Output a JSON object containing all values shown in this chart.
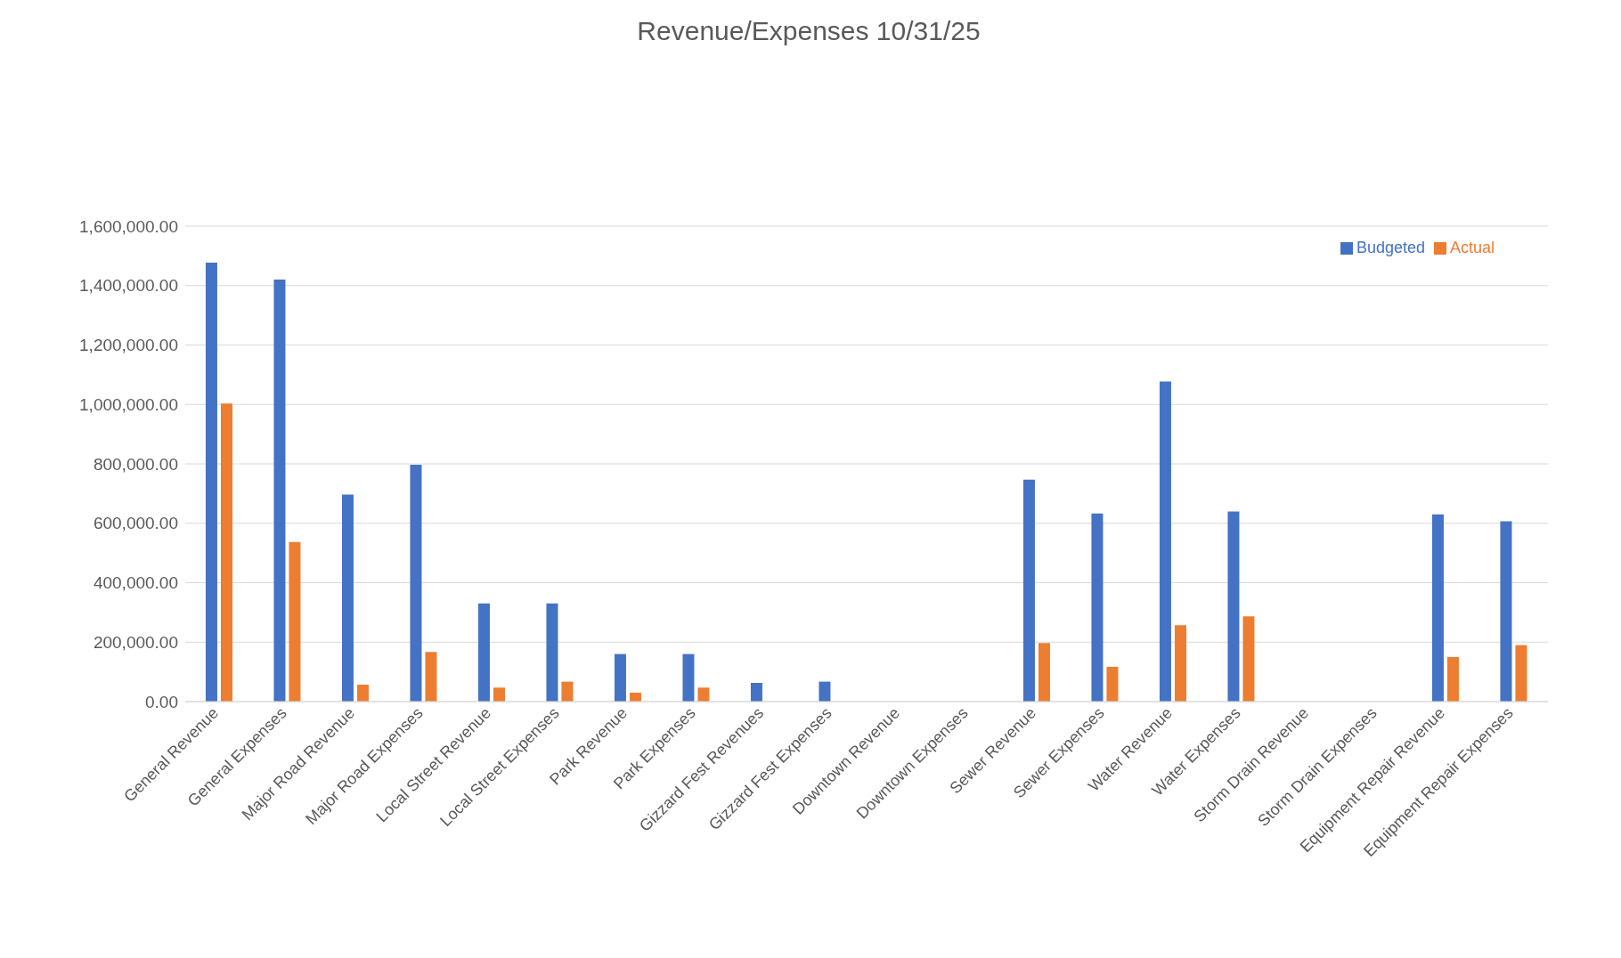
{
  "chart_data": {
    "type": "bar",
    "title": "Revenue/Expenses  10/31/25",
    "categories": [
      "General Revenue",
      "General Expenses",
      "Major Road Revenue",
      "Major Road Expenses",
      "Local Street Revenue",
      "Local Street Expenses",
      "Park Revenue",
      "Park Expenses",
      "Gizzard Fest Revenues",
      "Gizzard Fest Expenses",
      "Downtown Revenue",
      "Downtown Expenses",
      "Sewer Revenue",
      "Sewer Expenses",
      "Water Revenue",
      "Water Expenses",
      "Storm Drain Revenue",
      "Storm Drain Expenses",
      "Equipment Repair Revenue",
      "Equipment Repair Expenses"
    ],
    "series": [
      {
        "name": "Budgeted",
        "color": "#4472c4",
        "values": [
          1477000,
          1420000,
          697000,
          797000,
          330000,
          330000,
          160000,
          160000,
          63000,
          67000,
          null,
          null,
          747000,
          633000,
          1077000,
          640000,
          0,
          0,
          630000,
          607000
        ]
      },
      {
        "name": "Actual",
        "color": "#ed7d31",
        "values": [
          1003000,
          537000,
          57000,
          167000,
          47000,
          67000,
          30000,
          47000,
          0,
          0,
          null,
          0,
          197000,
          117000,
          257000,
          287000,
          0,
          null,
          150000,
          190000
        ]
      }
    ],
    "ylim": [
      0,
      1600000
    ],
    "yticks": [
      {
        "value": 0,
        "label": "0.00"
      },
      {
        "value": 200000,
        "label": "200,000.00"
      },
      {
        "value": 400000,
        "label": "400,000.00"
      },
      {
        "value": 600000,
        "label": "600,000.00"
      },
      {
        "value": 800000,
        "label": "800,000.00"
      },
      {
        "value": 1000000,
        "label": "1,000,000.00"
      },
      {
        "value": 1200000,
        "label": "1,200,000.00"
      },
      {
        "value": 1400000,
        "label": "1,400,000.00"
      },
      {
        "value": 1600000,
        "label": "1,600,000.00"
      }
    ],
    "grid": "y",
    "legend": "top right"
  }
}
